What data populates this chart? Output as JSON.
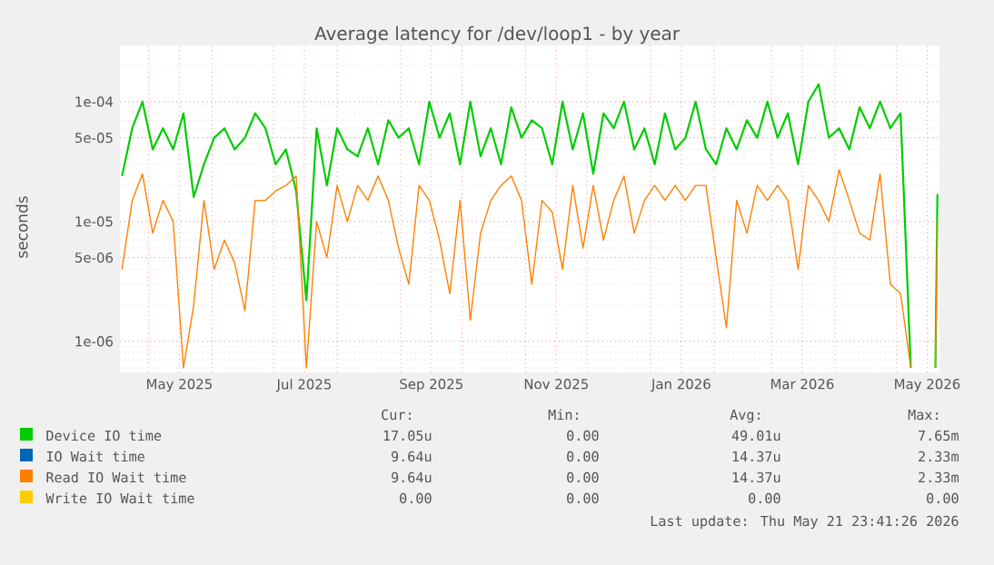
{
  "chart_data": {
    "type": "line",
    "title": "Average latency for /dev/loop1 - by year",
    "ylabel": "seconds",
    "log": "y",
    "grid": true,
    "legend": "bottom",
    "xlim": [
      "2025-04-17",
      "2026-05-22"
    ],
    "xticks": [
      {
        "value": "2025-05-01",
        "label": null
      },
      {
        "value": "2025-05-16",
        "label": "May 2025"
      },
      {
        "value": "2025-06-01",
        "label": null
      },
      {
        "value": "2025-07-01",
        "label": null
      },
      {
        "value": "2025-07-16",
        "label": "Jul 2025"
      },
      {
        "value": "2025-08-01",
        "label": null
      },
      {
        "value": "2025-09-01",
        "label": null
      },
      {
        "value": "2025-09-16",
        "label": "Sep 2025"
      },
      {
        "value": "2025-10-01",
        "label": null
      },
      {
        "value": "2025-11-01",
        "label": null
      },
      {
        "value": "2025-11-16",
        "label": "Nov 2025"
      },
      {
        "value": "2025-12-01",
        "label": null
      },
      {
        "value": "2026-01-01",
        "label": null
      },
      {
        "value": "2026-01-16",
        "label": "Jan 2026"
      },
      {
        "value": "2026-02-01",
        "label": null
      },
      {
        "value": "2026-03-01",
        "label": null
      },
      {
        "value": "2026-03-16",
        "label": "Mar 2026"
      },
      {
        "value": "2026-04-01",
        "label": null
      },
      {
        "value": "2026-05-01",
        "label": null
      },
      {
        "value": "2026-05-16",
        "label": "May 2026"
      }
    ],
    "ylim": [
      5.5e-07,
      0.000295
    ],
    "yticks": [
      {
        "value": 1e-06,
        "label": "1e-06"
      },
      {
        "value": 5e-06,
        "label": "5e-06"
      },
      {
        "value": 1e-05,
        "label": "1e-05"
      },
      {
        "value": 5e-05,
        "label": "5e-05"
      },
      {
        "value": 0.0001,
        "label": "1e-04"
      }
    ],
    "x": [
      "2025-04-18",
      "2025-04-23",
      "2025-04-28",
      "2025-05-03",
      "2025-05-08",
      "2025-05-13",
      "2025-05-18",
      "2025-05-23",
      "2025-05-28",
      "2025-06-02",
      "2025-06-07",
      "2025-06-12",
      "2025-06-17",
      "2025-06-22",
      "2025-06-27",
      "2025-07-02",
      "2025-07-07",
      "2025-07-12",
      "2025-07-17",
      "2025-07-22",
      "2025-07-27",
      "2025-08-01",
      "2025-08-06",
      "2025-08-11",
      "2025-08-16",
      "2025-08-21",
      "2025-08-26",
      "2025-08-31",
      "2025-09-05",
      "2025-09-10",
      "2025-09-15",
      "2025-09-20",
      "2025-09-25",
      "2025-09-30",
      "2025-10-05",
      "2025-10-10",
      "2025-10-15",
      "2025-10-20",
      "2025-10-25",
      "2025-10-30",
      "2025-11-04",
      "2025-11-09",
      "2025-11-14",
      "2025-11-19",
      "2025-11-24",
      "2025-11-29",
      "2025-12-04",
      "2025-12-09",
      "2025-12-14",
      "2025-12-19",
      "2025-12-24",
      "2025-12-29",
      "2026-01-03",
      "2026-01-08",
      "2026-01-13",
      "2026-01-18",
      "2026-01-23",
      "2026-01-28",
      "2026-02-02",
      "2026-02-07",
      "2026-02-12",
      "2026-02-17",
      "2026-02-22",
      "2026-02-27",
      "2026-03-04",
      "2026-03-09",
      "2026-03-14",
      "2026-03-19",
      "2026-03-24",
      "2026-03-29",
      "2026-04-03",
      "2026-04-08",
      "2026-04-13",
      "2026-04-18",
      "2026-04-23",
      "2026-04-28",
      "2026-05-03",
      "2026-05-08",
      "2026-05-12",
      "2026-05-20",
      "2026-05-21"
    ],
    "series": [
      {
        "name": "Device IO time",
        "color": "#00cc00",
        "values": [
          2.4e-05,
          6e-05,
          0.0001,
          4e-05,
          6e-05,
          4e-05,
          8e-05,
          1.6e-05,
          3e-05,
          5e-05,
          6e-05,
          4e-05,
          5e-05,
          8e-05,
          6e-05,
          3e-05,
          4e-05,
          1.8e-05,
          2.2e-06,
          6e-05,
          2e-05,
          6e-05,
          4e-05,
          3.5e-05,
          6e-05,
          3e-05,
          7e-05,
          5e-05,
          6e-05,
          3e-05,
          0.0001,
          5e-05,
          8e-05,
          3e-05,
          0.0001,
          3.5e-05,
          6e-05,
          3e-05,
          9e-05,
          5e-05,
          7e-05,
          6e-05,
          3e-05,
          0.0001,
          4e-05,
          8e-05,
          2.5e-05,
          8e-05,
          6e-05,
          0.0001,
          4e-05,
          6e-05,
          3e-05,
          8e-05,
          4e-05,
          5e-05,
          0.0001,
          4e-05,
          3e-05,
          6e-05,
          4e-05,
          7e-05,
          5e-05,
          0.0001,
          5e-05,
          8e-05,
          3e-05,
          0.0001,
          0.00014,
          5e-05,
          6e-05,
          4e-05,
          9e-05,
          6e-05,
          0.0001,
          6e-05,
          8e-05,
          6e-07,
          null,
          6e-07,
          1.7e-05
        ]
      },
      {
        "name": "IO Wait time",
        "color": "#0066b3",
        "values": [
          null,
          null,
          null,
          null,
          null,
          null,
          null,
          null,
          null,
          null,
          null,
          null,
          null,
          null,
          null,
          null,
          null,
          null,
          null,
          null,
          null,
          null,
          null,
          null,
          null,
          null,
          null,
          null,
          null,
          null,
          null,
          null,
          null,
          null,
          null,
          null,
          null,
          null,
          null,
          null,
          null,
          null,
          null,
          null,
          null,
          null,
          null,
          null,
          null,
          null,
          null,
          null,
          null,
          null,
          null,
          null,
          null,
          null,
          null,
          null,
          null,
          null,
          null,
          null,
          null,
          null,
          null,
          null,
          null,
          null,
          null,
          null,
          null,
          null,
          null,
          null,
          null,
          null,
          null,
          null,
          null
        ]
      },
      {
        "name": "Read IO Wait time",
        "color": "#ff8000",
        "values": [
          4e-06,
          1.5e-05,
          2.5e-05,
          8e-06,
          1.5e-05,
          1e-05,
          6e-07,
          2e-06,
          1.5e-05,
          4e-06,
          7e-06,
          4.5e-06,
          1.8e-06,
          1.5e-05,
          1.5e-05,
          1.8e-05,
          2e-05,
          2.4e-05,
          6e-07,
          1e-05,
          5e-06,
          2e-05,
          1e-05,
          2e-05,
          1.5e-05,
          2.4e-05,
          1.5e-05,
          6e-06,
          3e-06,
          2e-05,
          1.5e-05,
          7e-06,
          2.5e-06,
          1.5e-05,
          1.5e-06,
          8e-06,
          1.5e-05,
          2e-05,
          2.4e-05,
          1.5e-05,
          3e-06,
          1.5e-05,
          1.2e-05,
          4e-06,
          2e-05,
          6e-06,
          2e-05,
          7e-06,
          1.5e-05,
          2.4e-05,
          8e-06,
          1.5e-05,
          2e-05,
          1.5e-05,
          2e-05,
          1.5e-05,
          2e-05,
          2e-05,
          5e-06,
          1.3e-06,
          1.5e-05,
          8e-06,
          2e-05,
          1.5e-05,
          2e-05,
          1.5e-05,
          4e-06,
          2e-05,
          1.5e-05,
          1e-05,
          2.7e-05,
          1.5e-05,
          8e-06,
          7e-06,
          2.5e-05,
          3e-06,
          2.5e-06,
          6e-07,
          null,
          6e-07,
          1e-05
        ]
      },
      {
        "name": "Write IO Wait time",
        "color": "#ffcc00",
        "values": [
          null,
          null,
          null,
          null,
          null,
          null,
          null,
          null,
          null,
          null,
          null,
          null,
          null,
          null,
          null,
          null,
          null,
          null,
          null,
          null,
          null,
          null,
          null,
          null,
          null,
          null,
          null,
          null,
          null,
          null,
          null,
          null,
          null,
          null,
          null,
          null,
          null,
          null,
          null,
          null,
          null,
          null,
          null,
          null,
          null,
          null,
          null,
          null,
          null,
          null,
          null,
          null,
          null,
          null,
          null,
          null,
          null,
          null,
          null,
          null,
          null,
          null,
          null,
          null,
          null,
          null,
          null,
          null,
          null,
          null,
          null,
          null,
          null,
          null,
          null,
          null,
          null,
          null,
          null,
          null,
          null
        ]
      }
    ],
    "annotations": [
      "Cur:",
      "Min:",
      "Avg:",
      "Max:",
      "17.05u",
      "0.00",
      "49.01u",
      "7.65m",
      "9.64u",
      "0.00",
      "14.37u",
      "2.33m",
      "9.64u",
      "0.00",
      "14.37u",
      "2.33m",
      "0.00",
      "0.00",
      "0.00",
      "0.00",
      "Last update: Thu May 21 23:41:26 2026"
    ]
  }
}
